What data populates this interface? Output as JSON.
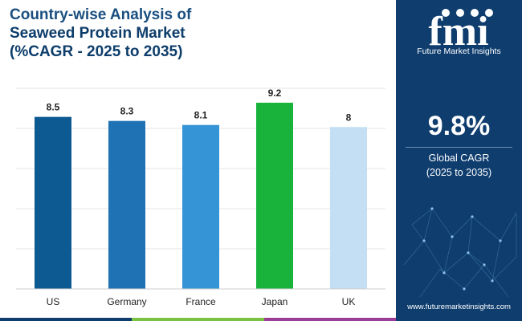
{
  "header": {
    "line1": "Country-wise Analysis of",
    "line2": "Seaweed Protein Market",
    "line3": "(%CAGR - 2025 to 2035)"
  },
  "chart_data": {
    "type": "bar",
    "categories": [
      "US",
      "Germany",
      "France",
      "Japan",
      "UK"
    ],
    "values": [
      8.5,
      8.3,
      8.1,
      9.2,
      8
    ],
    "value_labels": [
      "8.5",
      "8.3",
      "8.1",
      "9.2",
      "8"
    ],
    "bar_colors": [
      "#0d5a92",
      "#1f72b4",
      "#3494d6",
      "#19b23b",
      "#c4dff3"
    ],
    "title": "",
    "xlabel": "",
    "ylabel": "",
    "ylim": [
      0,
      9.2
    ],
    "grid": true,
    "legend": "none"
  },
  "panel": {
    "logo_text": "fmi",
    "logo_caption": "Future Market Insights",
    "metric_value": "9.8%",
    "metric_label_line1": "Global CAGR",
    "metric_label_line2": "(2025 to 2035)",
    "url": "www.futuremarketinsights.com"
  },
  "colors": {
    "panel_bg": "#0e3d6e",
    "title": "#0d3d6b",
    "bottom_bar": [
      "#0e3d6e",
      "#7cc242",
      "#9b3d96"
    ]
  }
}
